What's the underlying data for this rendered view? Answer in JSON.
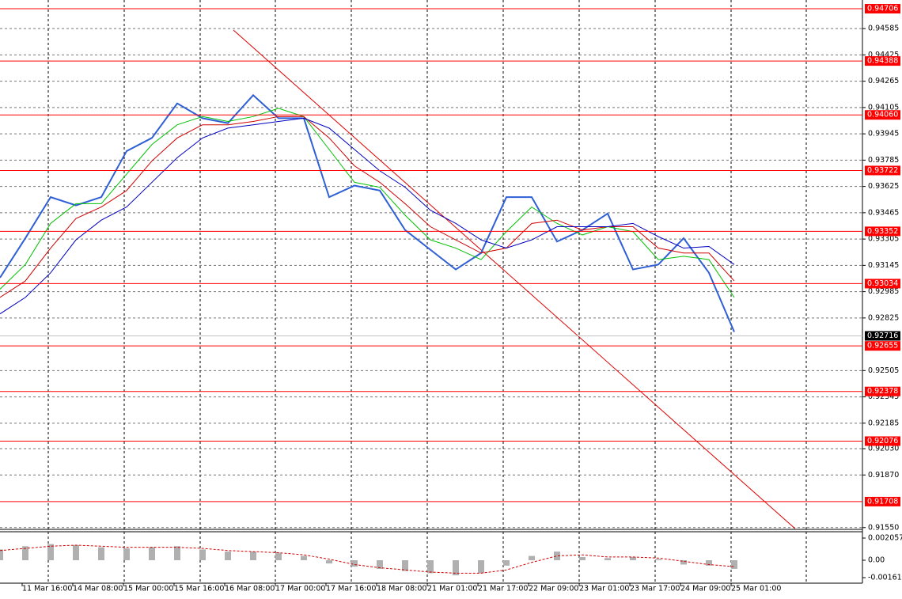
{
  "chart_data": [
    {
      "type": "line",
      "x": [
        0,
        1,
        2,
        3,
        4,
        5,
        6,
        7,
        8,
        9,
        10,
        11,
        12,
        13,
        14,
        15,
        16,
        17,
        18,
        19,
        20,
        21,
        22,
        23,
        24,
        25,
        26,
        27,
        28,
        29
      ],
      "xlim": [
        0,
        34.0625
      ],
      "xticks": [
        {
          "value": 0.875,
          "label": "11 Mar 16:00"
        },
        {
          "value": 2.875,
          "label": "14 Mar 08:00"
        },
        {
          "value": 4.875,
          "label": "15 Mar 00:00"
        },
        {
          "value": 6.875,
          "label": "15 Mar 16:00"
        },
        {
          "value": 8.875,
          "label": "16 Mar 08:00"
        },
        {
          "value": 10.875,
          "label": "17 Mar 00:00"
        },
        {
          "value": 12.875,
          "label": "17 Mar 16:00"
        },
        {
          "value": 14.875,
          "label": "18 Mar 08:00"
        },
        {
          "value": 16.875,
          "label": "21 Mar 01:00"
        },
        {
          "value": 18.875,
          "label": "21 Mar 17:00"
        },
        {
          "value": 20.875,
          "label": "22 Mar 09:00"
        },
        {
          "value": 22.875,
          "label": "23 Mar 01:00"
        },
        {
          "value": 24.875,
          "label": "23 Mar 17:00"
        },
        {
          "value": 26.875,
          "label": "24 Mar 09:00"
        },
        {
          "value": 28.875,
          "label": "25 Mar 01:00"
        }
      ],
      "ylim": [
        0.91544,
        0.94759
      ],
      "yticks": [
        0.94585,
        0.94425,
        0.94265,
        0.94105,
        0.93945,
        0.93785,
        0.93625,
        0.93465,
        0.93305,
        0.93145,
        0.92985,
        0.92825,
        0.92505,
        0.92345,
        0.92185,
        {
          "value": 0.9203,
          "label": "0.92030"
        },
        {
          "value": 0.9187,
          "label": "0.91870"
        },
        {
          "value": 0.9155,
          "label": "0.91550"
        }
      ],
      "grid": true,
      "series": [
        {
          "color": "#2e5fd6",
          "values": [
            0.9307,
            0.9331,
            0.9356,
            0.9351,
            0.9356,
            0.9384,
            0.9392,
            0.9413,
            0.9404,
            0.9401,
            0.9418,
            0.9404,
            0.9404,
            0.9356,
            0.9363,
            0.936,
            0.9336,
            0.9324,
            0.9312,
            0.9322,
            0.9356,
            0.9356,
            0.9329,
            0.9336,
            0.9346,
            0.9312,
            0.9315,
            0.9331,
            0.931,
            0.9274
          ]
        },
        {
          "color": "#00c000",
          "values": [
            0.93,
            0.9315,
            0.934,
            0.9352,
            0.9352,
            0.937,
            0.9388,
            0.94,
            0.9405,
            0.9402,
            0.9405,
            0.941,
            0.9405,
            0.9385,
            0.9365,
            0.9362,
            0.9345,
            0.933,
            0.9325,
            0.9318,
            0.9335,
            0.935,
            0.934,
            0.9333,
            0.9338,
            0.9335,
            0.9318,
            0.932,
            0.9318,
            0.9295
          ]
        },
        {
          "color": "#d00000",
          "values": [
            0.9295,
            0.9305,
            0.9325,
            0.9343,
            0.935,
            0.936,
            0.9378,
            0.9392,
            0.94,
            0.94,
            0.9402,
            0.9405,
            0.9405,
            0.9392,
            0.9375,
            0.9365,
            0.9352,
            0.9338,
            0.933,
            0.9322,
            0.9325,
            0.934,
            0.9342,
            0.9336,
            0.9338,
            0.9338,
            0.9325,
            0.9322,
            0.9322,
            0.9305
          ]
        },
        {
          "color": "#0000c0",
          "values": [
            0.9285,
            0.9295,
            0.931,
            0.933,
            0.9342,
            0.935,
            0.9365,
            0.938,
            0.9392,
            0.9398,
            0.94,
            0.9402,
            0.9404,
            0.9398,
            0.9385,
            0.9372,
            0.9362,
            0.9348,
            0.934,
            0.933,
            0.9325,
            0.933,
            0.9338,
            0.9338,
            0.9338,
            0.934,
            0.9332,
            0.9325,
            0.9326,
            0.9315
          ]
        }
      ],
      "price_levels": [
        0.94706,
        0.94388,
        {
          "value": 0.9406,
          "label": "0.94060"
        },
        0.93722,
        0.93352,
        0.93034,
        0.92655,
        0.92378,
        0.92076,
        0.91708
      ],
      "level_color": "#ff0000",
      "last_price": 0.92716,
      "trendline": {
        "x": [
          9.22,
          31.4
        ],
        "y": [
          0.94576,
          0.91544
        ],
        "color": "#e00000"
      }
    },
    {
      "type": "bar",
      "x": [
        0,
        1,
        2,
        3,
        4,
        5,
        6,
        7,
        8,
        9,
        10,
        11,
        12,
        13,
        14,
        15,
        16,
        17,
        18,
        19,
        20,
        21,
        22,
        23,
        24,
        25,
        26,
        27,
        28,
        29
      ],
      "xlim": [
        0,
        34.0625
      ],
      "ylim": [
        -0.00213,
        0.002645
      ],
      "yticks": [
        0.002057,
        {
          "value": 0,
          "label": "0.00"
        },
        -0.001617
      ],
      "series": [
        {
          "color": "#b0b0b0",
          "values": [
            0.001,
            0.0013,
            0.0015,
            0.0014,
            0.0012,
            0.0011,
            0.0012,
            0.0013,
            0.001,
            0.0008,
            0.0008,
            0.0007,
            0.0004,
            -0.0003,
            -0.0006,
            -0.0008,
            -0.001,
            -0.0012,
            -0.0014,
            -0.0012,
            -0.0005,
            0.0004,
            0.0008,
            0.0003,
            0.0002,
            0.0003,
            0.0001,
            -0.0004,
            -0.0005,
            -0.0008
          ]
        },
        {
          "color": "#d00000",
          "type": "line",
          "values": [
            0.0009,
            0.0011,
            0.0013,
            0.0014,
            0.0013,
            0.0012,
            0.0012,
            0.0012,
            0.0011,
            0.0009,
            0.0008,
            0.0007,
            0.0005,
            0.0001,
            -0.0004,
            -0.0007,
            -0.0009,
            -0.0011,
            -0.0012,
            -0.0012,
            -0.0009,
            -0.0002,
            0.0004,
            0.0005,
            0.0003,
            0.0003,
            0.0002,
            -0.0001,
            -0.0004,
            -0.0006
          ]
        }
      ]
    }
  ]
}
